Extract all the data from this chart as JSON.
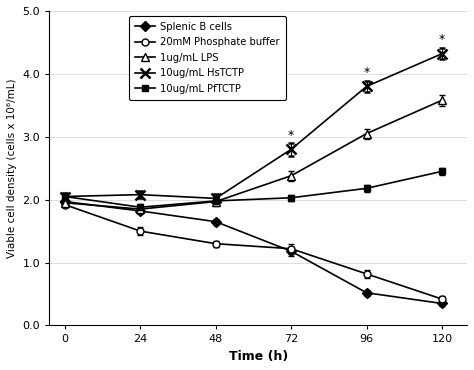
{
  "time": [
    0,
    24,
    48,
    72,
    96,
    120
  ],
  "splenic_b_cells": [
    1.97,
    1.82,
    1.65,
    1.18,
    0.52,
    0.35
  ],
  "splenic_b_cells_err": [
    0.05,
    0.05,
    0.05,
    0.07,
    0.05,
    0.04
  ],
  "phosphate_buffer": [
    1.92,
    1.5,
    1.3,
    1.22,
    0.82,
    0.42
  ],
  "phosphate_buffer_err": [
    0.04,
    0.06,
    0.05,
    0.08,
    0.06,
    0.05
  ],
  "lps": [
    1.95,
    1.85,
    1.97,
    2.38,
    3.05,
    3.58
  ],
  "lps_err": [
    0.05,
    0.05,
    0.07,
    0.08,
    0.08,
    0.09
  ],
  "hstctp": [
    2.05,
    2.08,
    2.02,
    2.8,
    3.8,
    4.32
  ],
  "hstctp_err": [
    0.05,
    0.05,
    0.07,
    0.1,
    0.09,
    0.09
  ],
  "pftctp": [
    2.05,
    1.88,
    1.98,
    2.03,
    2.18,
    2.45
  ],
  "pftctp_err": [
    0.05,
    0.05,
    0.06,
    0.05,
    0.06,
    0.06
  ],
  "star_times": [
    72,
    96,
    120
  ],
  "star_hstctp_vals": [
    2.8,
    3.8,
    4.32
  ],
  "xlabel": "Time (h)",
  "ylabel": "Viable cell density (cells x 10⁶/mL)",
  "xlim": [
    -5,
    128
  ],
  "ylim": [
    0.0,
    5.0
  ],
  "yticks": [
    0.0,
    1.0,
    2.0,
    3.0,
    4.0,
    5.0
  ],
  "xticks": [
    0,
    24,
    48,
    72,
    96,
    120
  ],
  "legend_labels": [
    "Splenic B cells",
    "20mM Phosphate buffer",
    "1ug/mL LPS",
    "10ug/mL HsTCTP",
    "10ug/mL PfTCTP"
  ]
}
